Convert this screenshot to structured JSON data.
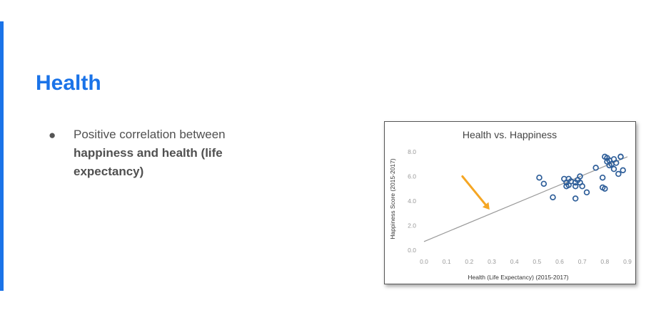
{
  "slide": {
    "title": "Health",
    "bullets": [
      {
        "normal": "Positive correlation between ",
        "bold": "happiness and health (life expectancy)"
      }
    ]
  },
  "colors": {
    "accent": "#1a73e8",
    "point": "#2e5e99",
    "trendline": "#999999",
    "arrow": "#f5a623"
  },
  "chart_data": {
    "type": "scatter",
    "title": "Health vs. Happiness",
    "xlabel": "Health (Life Expectancy) (2015-2017)",
    "ylabel": "Happiness Score (2015-2017)",
    "xlim": [
      0.0,
      0.9
    ],
    "ylim": [
      0.0,
      8.0
    ],
    "xticks": [
      "0.0",
      "0.1",
      "0.2",
      "0.3",
      "0.4",
      "0.5",
      "0.6",
      "0.7",
      "0.8",
      "0.9"
    ],
    "yticks": [
      "0.0",
      "2.0",
      "4.0",
      "6.0",
      "8.0"
    ],
    "trendline": {
      "x": [
        0.0,
        0.9
      ],
      "y": [
        0.7,
        7.6
      ]
    },
    "grid": false,
    "arrow_annotation": {
      "from": [
        0.17,
        6.0
      ],
      "to": [
        0.29,
        3.3
      ]
    },
    "points": [
      {
        "x": 0.51,
        "y": 5.9
      },
      {
        "x": 0.53,
        "y": 5.4
      },
      {
        "x": 0.57,
        "y": 4.3
      },
      {
        "x": 0.62,
        "y": 5.8
      },
      {
        "x": 0.63,
        "y": 5.2
      },
      {
        "x": 0.63,
        "y": 5.5
      },
      {
        "x": 0.64,
        "y": 5.8
      },
      {
        "x": 0.64,
        "y": 5.3
      },
      {
        "x": 0.65,
        "y": 5.6
      },
      {
        "x": 0.67,
        "y": 5.5
      },
      {
        "x": 0.67,
        "y": 5.2
      },
      {
        "x": 0.67,
        "y": 4.2
      },
      {
        "x": 0.68,
        "y": 5.7
      },
      {
        "x": 0.69,
        "y": 6.0
      },
      {
        "x": 0.69,
        "y": 5.5
      },
      {
        "x": 0.7,
        "y": 5.2
      },
      {
        "x": 0.72,
        "y": 4.7
      },
      {
        "x": 0.76,
        "y": 6.7
      },
      {
        "x": 0.79,
        "y": 5.9
      },
      {
        "x": 0.79,
        "y": 5.1
      },
      {
        "x": 0.8,
        "y": 5.0
      },
      {
        "x": 0.8,
        "y": 7.6
      },
      {
        "x": 0.81,
        "y": 7.5
      },
      {
        "x": 0.81,
        "y": 7.2
      },
      {
        "x": 0.82,
        "y": 7.3
      },
      {
        "x": 0.82,
        "y": 6.9
      },
      {
        "x": 0.83,
        "y": 7.0
      },
      {
        "x": 0.84,
        "y": 7.4
      },
      {
        "x": 0.84,
        "y": 6.6
      },
      {
        "x": 0.85,
        "y": 7.1
      },
      {
        "x": 0.86,
        "y": 6.2
      },
      {
        "x": 0.87,
        "y": 7.6
      },
      {
        "x": 0.87,
        "y": 7.6
      },
      {
        "x": 0.88,
        "y": 6.5
      }
    ]
  }
}
